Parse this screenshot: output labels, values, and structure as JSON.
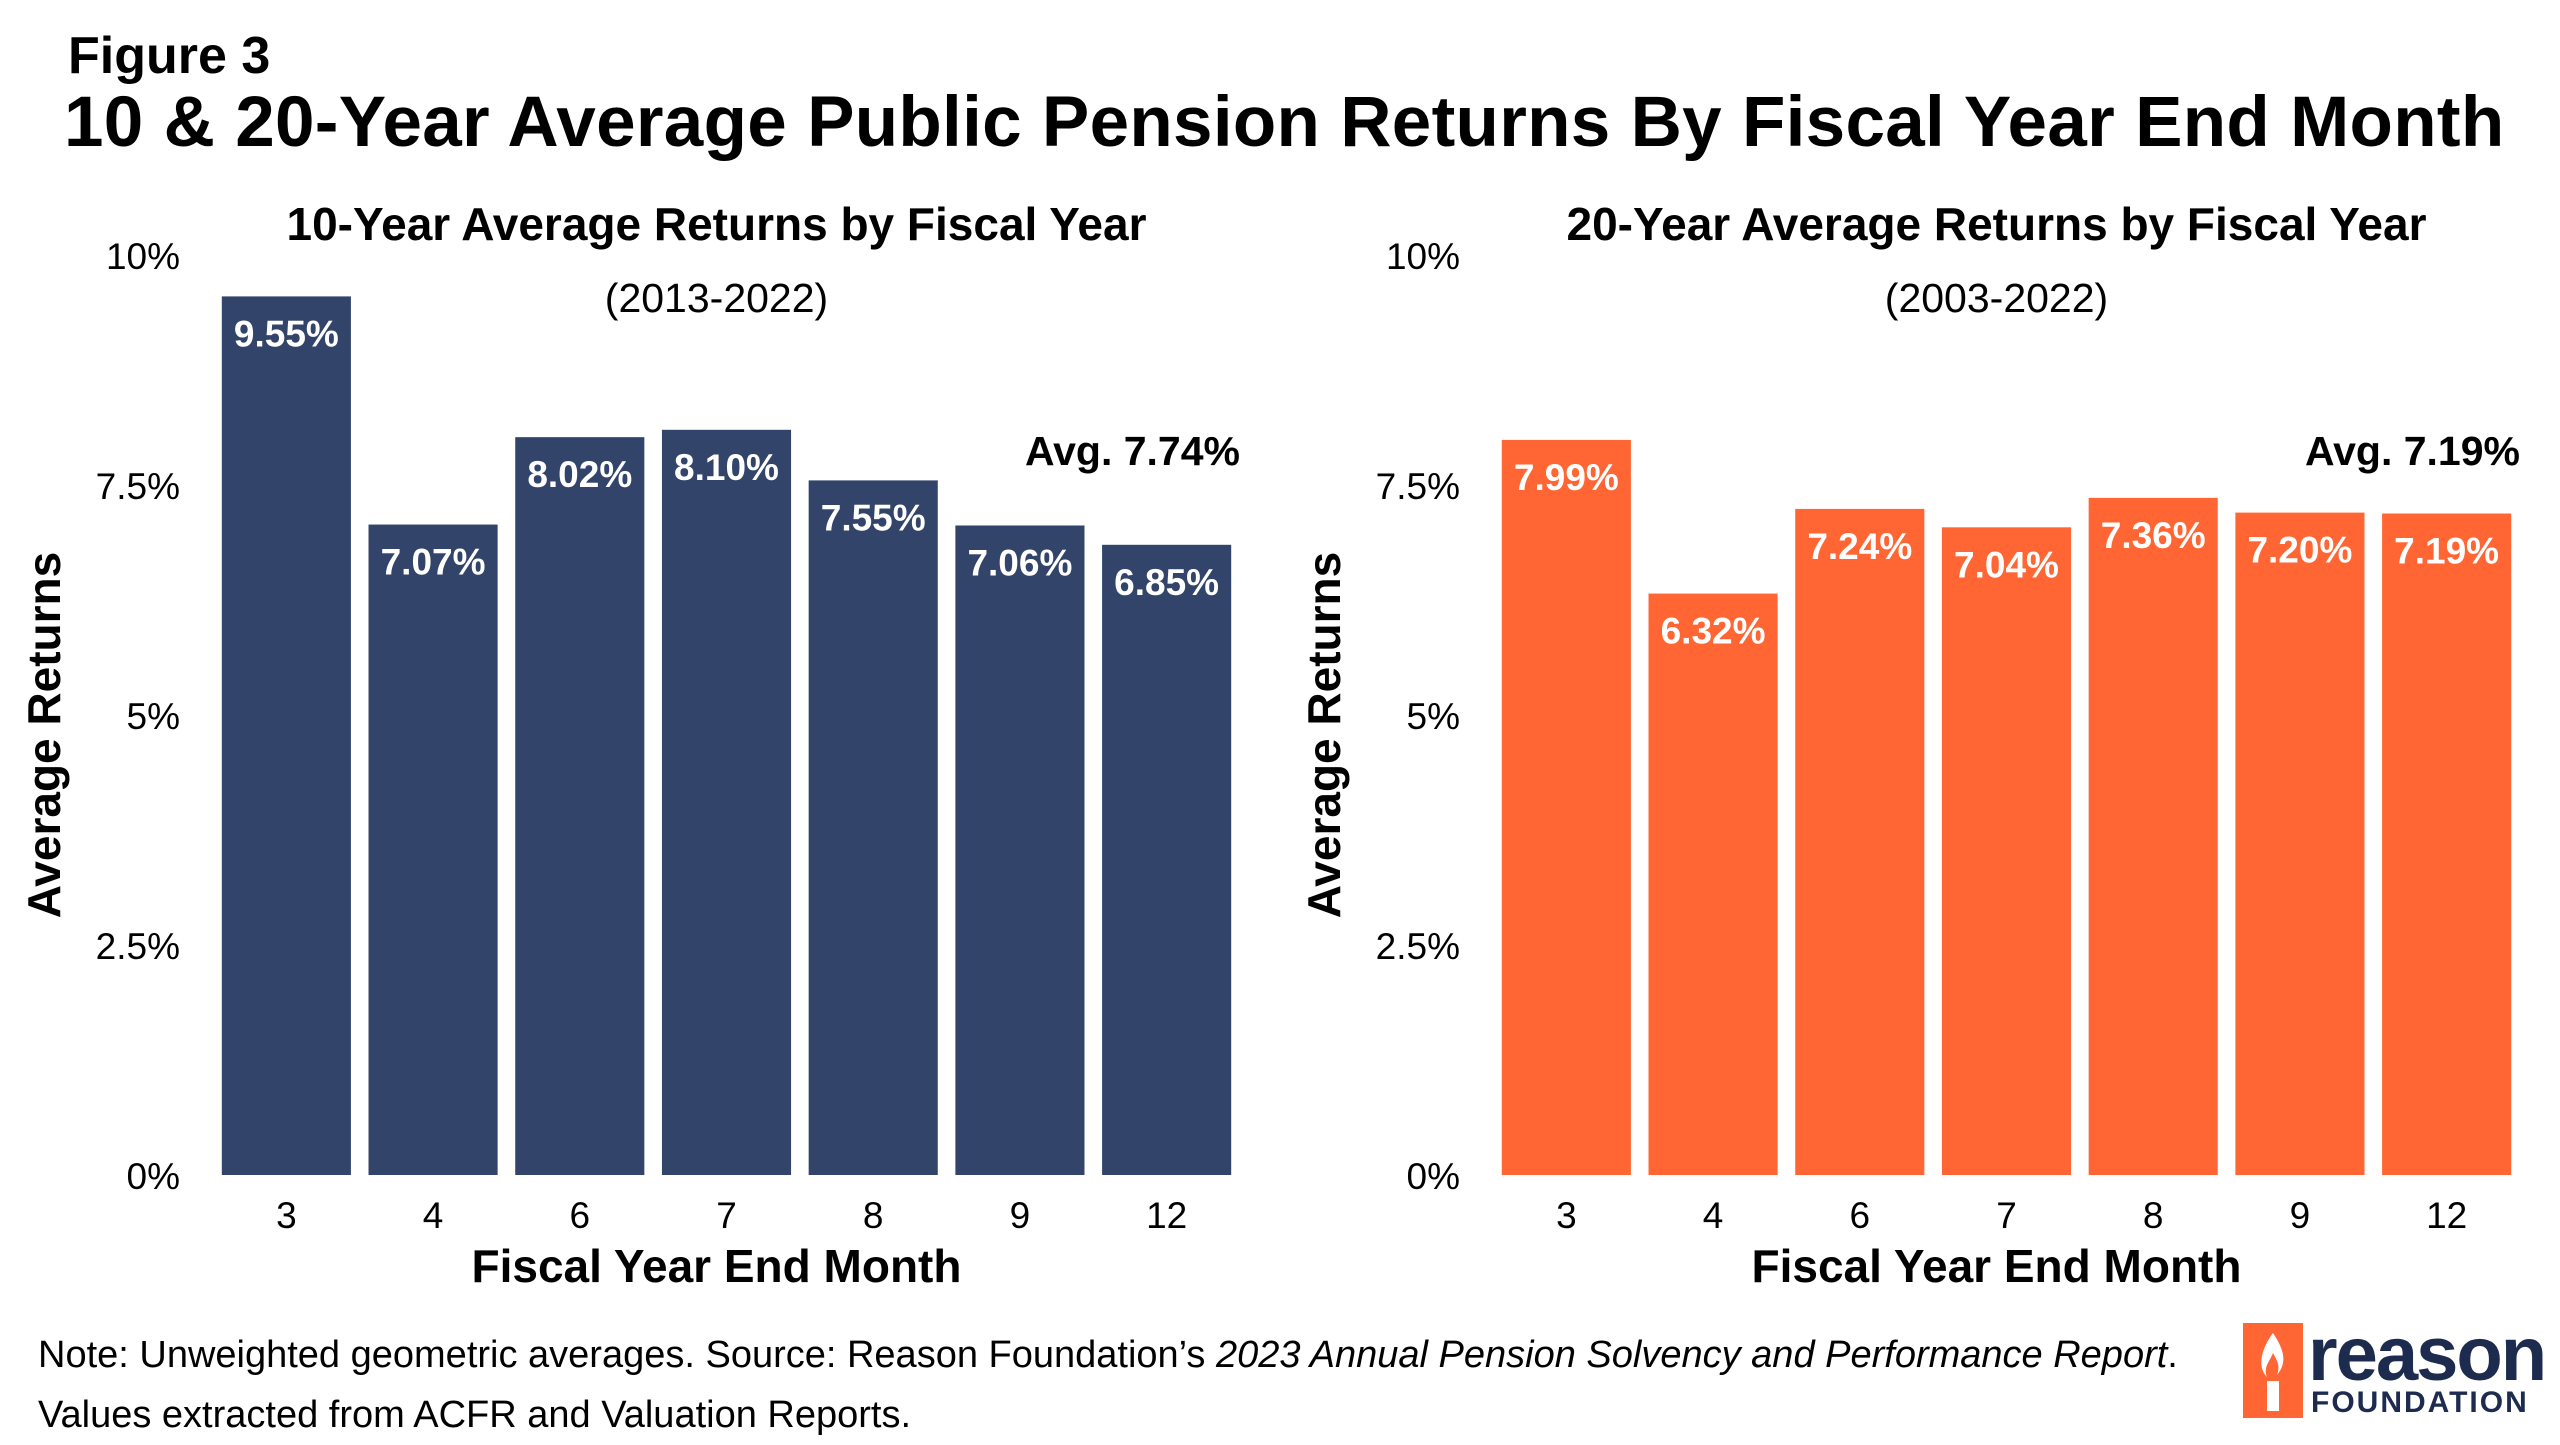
{
  "figure_label": "Figure 3",
  "main_title": "10 & 20-Year Average Public Pension Returns By Fiscal Year End Month",
  "note": {
    "part1": "Note: Unweighted geometric averages. Source: Reason Foundation’s ",
    "italic": "2023 Annual Pension Solvency and Performance Report",
    "part2": ".",
    "line2": "Values extracted from ACFR and Valuation Reports."
  },
  "logo": {
    "word": "reason",
    "sub": "FOUNDATION",
    "brand_color": "#1d2b4f",
    "flame_color": "#ff6633"
  },
  "chart_data": [
    {
      "type": "bar",
      "title": "10-Year Average Returns by Fiscal Year",
      "subtitle": "(2013-2022)",
      "xlabel": "Fiscal Year End Month",
      "ylabel": "Average Returns",
      "categories": [
        "3",
        "4",
        "6",
        "7",
        "8",
        "9",
        "12"
      ],
      "values": [
        9.55,
        7.07,
        8.02,
        8.1,
        7.55,
        7.06,
        6.85
      ],
      "labels": [
        "9.55%",
        "7.07%",
        "8.02%",
        "8.10%",
        "7.55%",
        "7.06%",
        "6.85%"
      ],
      "ylim": [
        0,
        10
      ],
      "yticks": [
        0,
        2.5,
        5,
        7.5,
        10
      ],
      "ytick_labels": [
        "0%",
        "2.5%",
        "5%",
        "7.5%",
        "10%"
      ],
      "annotation": "Avg. 7.74%",
      "color": "#324469",
      "grid": false
    },
    {
      "type": "bar",
      "title": "20-Year Average Returns by Fiscal Year",
      "subtitle": "(2003-2022)",
      "xlabel": "Fiscal Year End Month",
      "ylabel": "Average Returns",
      "categories": [
        "3",
        "4",
        "6",
        "7",
        "8",
        "9",
        "12"
      ],
      "values": [
        7.99,
        6.32,
        7.24,
        7.04,
        7.36,
        7.2,
        7.19
      ],
      "labels": [
        "7.99%",
        "6.32%",
        "7.24%",
        "7.04%",
        "7.36%",
        "7.20%",
        "7.19%"
      ],
      "ylim": [
        0,
        10
      ],
      "yticks": [
        0,
        2.5,
        5,
        7.5,
        10
      ],
      "ytick_labels": [
        "0%",
        "2.5%",
        "5%",
        "7.5%",
        "10%"
      ],
      "annotation": "Avg. 7.19%",
      "color": "#ff6633",
      "grid": false
    }
  ]
}
